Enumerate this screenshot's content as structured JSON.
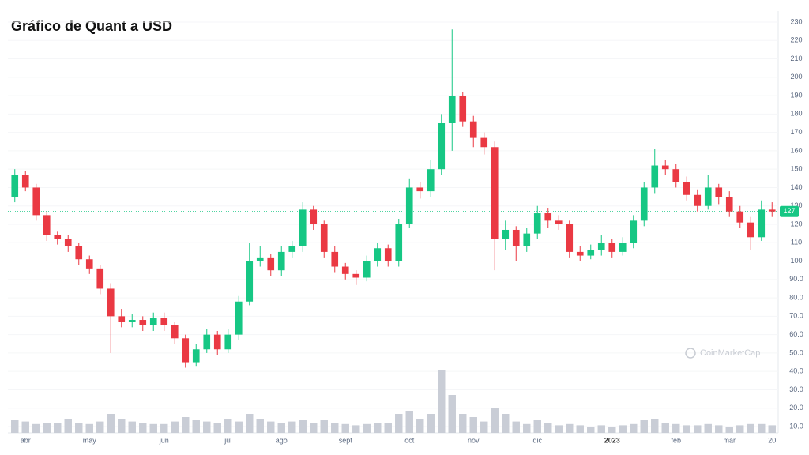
{
  "chart_data": {
    "type": "candlestick",
    "title": "Gráfico de Quant a USD",
    "watermark": "CoinMarketCap",
    "categories": [
      null,
      "abr",
      null,
      null,
      null,
      null,
      null,
      "may",
      null,
      null,
      null,
      null,
      null,
      null,
      "jun",
      null,
      null,
      null,
      null,
      null,
      "jul",
      null,
      null,
      null,
      null,
      "ago",
      null,
      null,
      null,
      null,
      null,
      "sept",
      null,
      null,
      null,
      null,
      null,
      "oct",
      null,
      null,
      null,
      null,
      null,
      "nov",
      null,
      null,
      null,
      null,
      null,
      "dic",
      null,
      null,
      null,
      null,
      null,
      null,
      "2023",
      null,
      null,
      null,
      null,
      null,
      "feb",
      null,
      null,
      null,
      null,
      "mar",
      null,
      null,
      null,
      "20"
    ],
    "open": [
      135,
      147,
      140,
      125,
      114,
      112,
      108,
      101,
      96,
      85,
      70,
      67,
      68,
      65,
      69,
      65,
      58,
      45,
      52,
      60,
      52,
      60,
      78,
      100,
      102,
      95,
      105,
      108,
      128,
      120,
      105,
      97,
      93,
      91,
      100,
      107,
      100,
      120,
      140,
      138,
      150,
      175,
      190,
      176,
      167,
      162,
      112,
      117,
      108,
      115,
      126,
      122,
      120,
      105,
      103,
      106,
      110,
      105,
      110,
      122,
      140,
      152,
      150,
      143,
      136,
      130,
      140,
      135,
      127,
      121,
      113,
      128
    ],
    "high": [
      150,
      149,
      142,
      127,
      116,
      114,
      110,
      103,
      98,
      88,
      74,
      71,
      70,
      72,
      72,
      67,
      60,
      55,
      63,
      62,
      63,
      81,
      110,
      108,
      104,
      108,
      111,
      132,
      130,
      122,
      108,
      99,
      95,
      103,
      110,
      109,
      123,
      145,
      143,
      155,
      180,
      226,
      192,
      179,
      170,
      165,
      122,
      119,
      118,
      130,
      129,
      125,
      122,
      108,
      109,
      114,
      112,
      113,
      125,
      143,
      161,
      155,
      153,
      146,
      139,
      147,
      142,
      138,
      130,
      124,
      133,
      132
    ],
    "low": [
      132,
      138,
      122,
      111,
      109,
      105,
      98,
      93,
      82,
      50,
      64,
      64,
      62,
      62,
      62,
      55,
      42,
      43,
      50,
      49,
      50,
      57,
      76,
      97,
      92,
      92,
      102,
      105,
      117,
      102,
      94,
      90,
      87,
      89,
      97,
      97,
      97,
      118,
      134,
      135,
      147,
      160,
      173,
      162,
      158,
      95,
      106,
      100,
      105,
      112,
      118,
      117,
      102,
      100,
      101,
      103,
      102,
      103,
      107,
      119,
      137,
      147,
      140,
      133,
      127,
      128,
      131,
      124,
      118,
      106,
      111,
      124
    ],
    "close": [
      147,
      140,
      125,
      114,
      112,
      108,
      101,
      96,
      85,
      70,
      67,
      68,
      65,
      69,
      65,
      58,
      45,
      52,
      60,
      52,
      60,
      78,
      100,
      102,
      95,
      105,
      108,
      128,
      120,
      105,
      97,
      93,
      91,
      100,
      107,
      100,
      120,
      140,
      138,
      150,
      175,
      190,
      176,
      167,
      162,
      112,
      117,
      108,
      115,
      126,
      122,
      120,
      105,
      103,
      106,
      110,
      105,
      110,
      122,
      140,
      152,
      150,
      143,
      136,
      130,
      140,
      135,
      127,
      121,
      113,
      128,
      127
    ],
    "volume": [
      20,
      18,
      14,
      15,
      16,
      22,
      15,
      14,
      18,
      30,
      22,
      18,
      15,
      14,
      14,
      18,
      25,
      20,
      18,
      16,
      22,
      18,
      30,
      22,
      18,
      16,
      18,
      20,
      16,
      20,
      16,
      14,
      12,
      14,
      16,
      15,
      30,
      35,
      22,
      30,
      100,
      60,
      30,
      25,
      18,
      40,
      30,
      18,
      14,
      20,
      15,
      12,
      14,
      12,
      10,
      12,
      10,
      12,
      14,
      20,
      22,
      16,
      14,
      12,
      12,
      14,
      12,
      10,
      12,
      14,
      14,
      12
    ],
    "volume_ylim": [
      0,
      100
    ],
    "up_color": "#16c784",
    "down_color": "#ea3943",
    "volume_color": "#c9cdd6",
    "last_price": 127,
    "ylim": [
      10,
      230
    ],
    "yticks": [
      {
        "value": 10,
        "label": "10.0"
      },
      {
        "value": 20,
        "label": "20.0"
      },
      {
        "value": 30,
        "label": "30.0"
      },
      {
        "value": 40,
        "label": "40.0"
      },
      {
        "value": 50,
        "label": "50.0"
      },
      {
        "value": 60,
        "label": "60.0"
      },
      {
        "value": 70,
        "label": "70.0"
      },
      {
        "value": 80,
        "label": "80.0"
      },
      {
        "value": 90,
        "label": "90.0"
      },
      100,
      110,
      120,
      130,
      140,
      150,
      160,
      170,
      180,
      190,
      200,
      210,
      220,
      230
    ],
    "grid": true
  }
}
